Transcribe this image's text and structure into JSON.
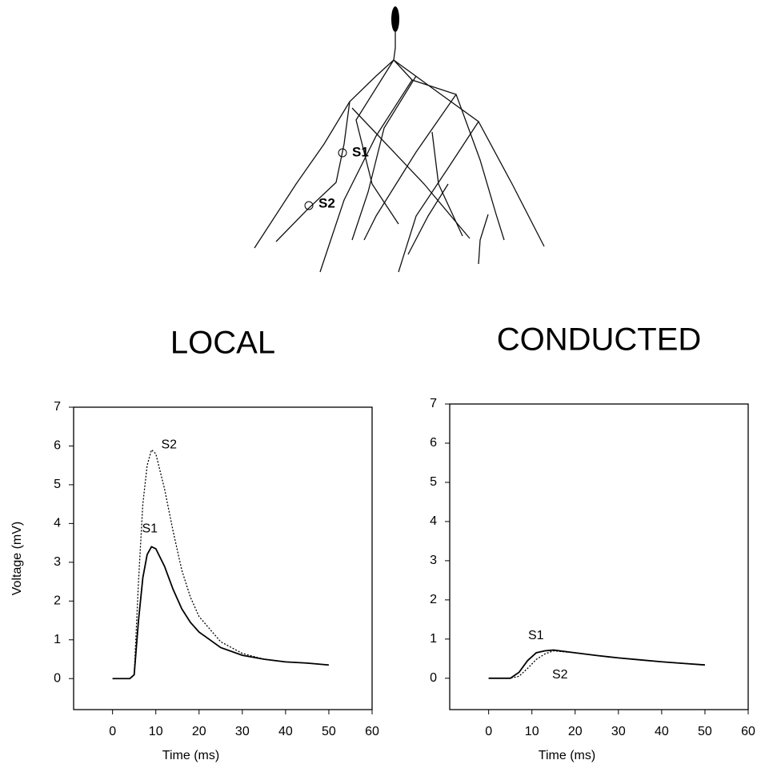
{
  "diagram": {
    "sites": [
      "S1",
      "S2"
    ]
  },
  "chart_data": [
    {
      "type": "line",
      "title": "LOCAL",
      "xlabel": "Time (ms)",
      "ylabel": "Voltage (mV)",
      "x": [
        0,
        4,
        5,
        6,
        7,
        8,
        9,
        10,
        12,
        14,
        16,
        18,
        20,
        25,
        30,
        35,
        40,
        45,
        50
      ],
      "series": [
        {
          "name": "S1",
          "color": "#000000",
          "style": "solid",
          "values": [
            0,
            0,
            0.1,
            1.5,
            2.6,
            3.2,
            3.4,
            3.35,
            2.9,
            2.3,
            1.8,
            1.45,
            1.2,
            0.8,
            0.6,
            0.5,
            0.43,
            0.4,
            0.35
          ]
        },
        {
          "name": "S2",
          "color": "#000000",
          "style": "dotted",
          "values": [
            0,
            0,
            0.1,
            2.5,
            4.5,
            5.5,
            5.9,
            5.8,
            4.9,
            3.8,
            2.8,
            2.1,
            1.6,
            0.95,
            0.65,
            0.5,
            0.43,
            0.4,
            0.35
          ]
        }
      ],
      "xlim": [
        -9,
        60
      ],
      "ylim": [
        -0.8,
        7
      ],
      "xticks": [
        0,
        10,
        20,
        30,
        40,
        50,
        60
      ],
      "yticks": [
        0,
        1,
        2,
        3,
        4,
        5,
        6,
        7
      ],
      "grid": false
    },
    {
      "type": "line",
      "title": "CONDUCTED",
      "xlabel": "Time (ms)",
      "x": [
        0,
        5,
        7,
        9,
        11,
        13,
        15,
        20,
        25,
        30,
        35,
        40,
        45,
        50
      ],
      "series": [
        {
          "name": "S1",
          "color": "#000000",
          "style": "solid",
          "values": [
            0,
            0,
            0.15,
            0.45,
            0.65,
            0.7,
            0.72,
            0.65,
            0.58,
            0.52,
            0.47,
            0.42,
            0.38,
            0.34
          ]
        },
        {
          "name": "S2",
          "color": "#000000",
          "style": "dotted",
          "values": [
            0,
            0,
            0.05,
            0.25,
            0.48,
            0.62,
            0.7,
            0.65,
            0.58,
            0.52,
            0.47,
            0.42,
            0.38,
            0.34
          ]
        }
      ],
      "xlim": [
        -9,
        60
      ],
      "ylim": [
        -0.8,
        7
      ],
      "xticks": [
        0,
        10,
        20,
        30,
        40,
        50,
        60
      ],
      "yticks": [
        0,
        1,
        2,
        3,
        4,
        5,
        6,
        7
      ],
      "grid": false
    }
  ]
}
